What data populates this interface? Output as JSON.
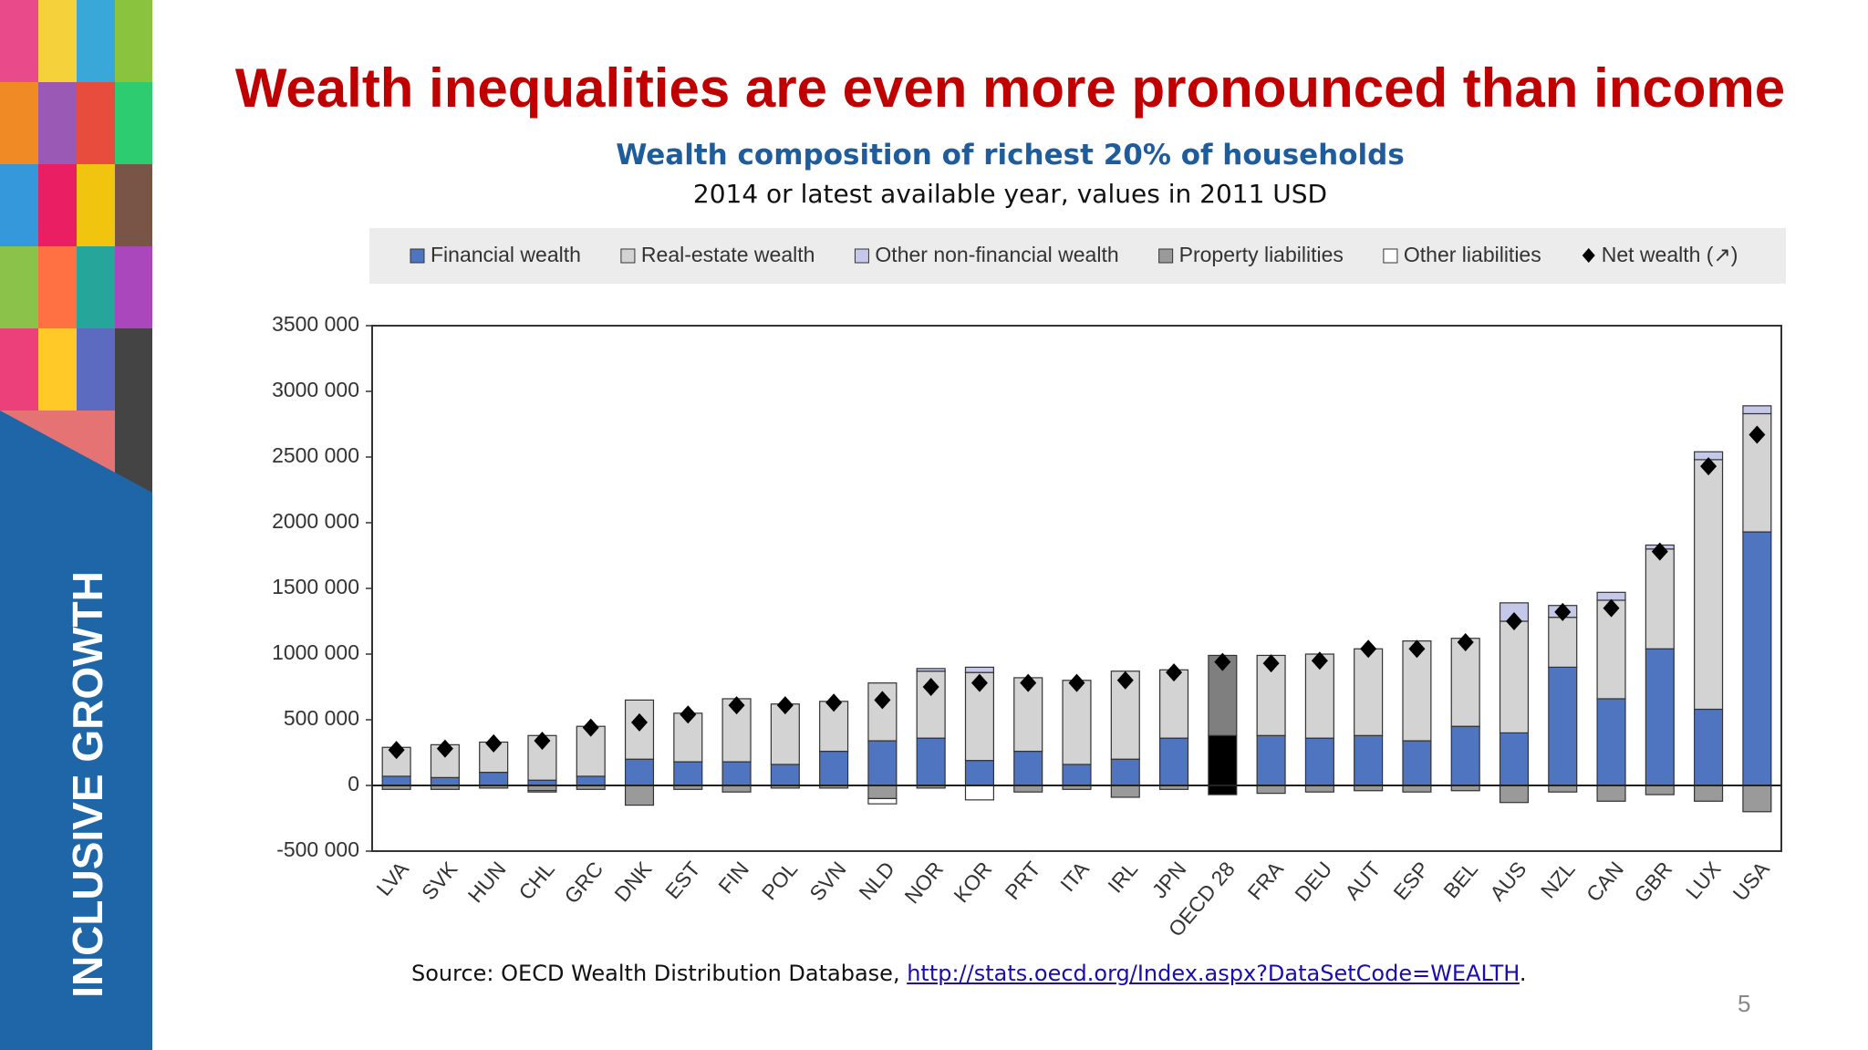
{
  "slide_title": "Wealth inequalities are even more pronounced than income",
  "side_label": "INCLUSIVE GROWTH",
  "source": {
    "text": "Source: OECD Wealth Distribution Database, ",
    "link": "http://stats.oecd.org/Index.aspx?DataSetCode=WEALTH",
    "end": "."
  },
  "page_number": "5",
  "chart_data": {
    "type": "bar",
    "stacked": true,
    "title": "Wealth composition of richest 20% of households",
    "subtitle": "2014 or latest available year, values in 2011 USD",
    "categories": [
      "LVA",
      "SVK",
      "HUN",
      "CHL",
      "GRC",
      "DNK",
      "EST",
      "FIN",
      "POL",
      "SVN",
      "NLD",
      "NOR",
      "KOR",
      "PRT",
      "ITA",
      "IRL",
      "JPN",
      "OECD 28",
      "FRA",
      "DEU",
      "AUT",
      "ESP",
      "BEL",
      "AUS",
      "NZL",
      "CAN",
      "GBR",
      "LUX",
      "USA"
    ],
    "highlight_category": "OECD 28",
    "highlight_colors": [
      "#000000",
      "#7f7f7f",
      "#4a4a4a",
      "#000000",
      "#000000"
    ],
    "series": [
      {
        "name": "Financial wealth",
        "color": "#4f75c0",
        "type": "bar",
        "values": [
          70000,
          60000,
          100000,
          40000,
          70000,
          200000,
          180000,
          180000,
          160000,
          260000,
          340000,
          360000,
          190000,
          260000,
          160000,
          200000,
          360000,
          380000,
          380000,
          360000,
          380000,
          340000,
          450000,
          400000,
          900000,
          660000,
          1040000,
          580000,
          1930000
        ]
      },
      {
        "name": "Real-estate wealth",
        "color": "#d3d3d3",
        "type": "bar",
        "values": [
          220000,
          250000,
          230000,
          340000,
          380000,
          450000,
          370000,
          480000,
          460000,
          380000,
          440000,
          510000,
          670000,
          560000,
          640000,
          670000,
          520000,
          610000,
          610000,
          640000,
          660000,
          760000,
          670000,
          850000,
          380000,
          750000,
          760000,
          1900000,
          900000
        ]
      },
      {
        "name": "Other non-financial wealth",
        "color": "#c5c8e8",
        "type": "bar",
        "values": [
          0,
          0,
          0,
          0,
          0,
          0,
          0,
          0,
          0,
          0,
          0,
          20000,
          40000,
          0,
          0,
          0,
          0,
          0,
          0,
          0,
          0,
          0,
          0,
          140000,
          90000,
          60000,
          30000,
          60000,
          60000
        ]
      },
      {
        "name": "Property liabilities",
        "color": "#9a9a9a",
        "type": "bar",
        "values": [
          -30000,
          -30000,
          -20000,
          -40000,
          -30000,
          -150000,
          -30000,
          -50000,
          -20000,
          -20000,
          -100000,
          -20000,
          0,
          -50000,
          -30000,
          -90000,
          -30000,
          -70000,
          -60000,
          -50000,
          -40000,
          -50000,
          -40000,
          -130000,
          -50000,
          -120000,
          -70000,
          -120000,
          -200000
        ]
      },
      {
        "name": "Other liabilities",
        "color": "#ffffff",
        "type": "bar",
        "values": [
          0,
          0,
          0,
          -10000,
          0,
          0,
          0,
          0,
          0,
          0,
          -40000,
          0,
          -110000,
          0,
          0,
          0,
          0,
          0,
          0,
          0,
          0,
          0,
          0,
          0,
          0,
          0,
          0,
          0,
          0
        ]
      },
      {
        "name": "Net wealth (↗)",
        "color": "#000000",
        "type": "marker",
        "values": [
          270000,
          280000,
          320000,
          340000,
          440000,
          480000,
          540000,
          610000,
          610000,
          630000,
          650000,
          750000,
          780000,
          780000,
          780000,
          800000,
          860000,
          940000,
          930000,
          950000,
          1040000,
          1040000,
          1090000,
          1250000,
          1320000,
          1350000,
          1780000,
          2430000,
          2670000
        ]
      }
    ],
    "ylim": [
      -500000,
      3500000
    ],
    "yticks": [
      {
        "value": -500000,
        "label": "-500 000"
      },
      0,
      {
        "value": 500000,
        "label": "500 000"
      },
      {
        "value": 1000000,
        "label": "1000 000"
      },
      {
        "value": 1500000,
        "label": "1500 000"
      },
      {
        "value": 2000000,
        "label": "2000 000"
      },
      {
        "value": 2500000,
        "label": "2500 000"
      },
      {
        "value": 3000000,
        "label": "3000 000"
      },
      {
        "value": 3500000,
        "label": "3500 000"
      }
    ],
    "legend": "top"
  }
}
